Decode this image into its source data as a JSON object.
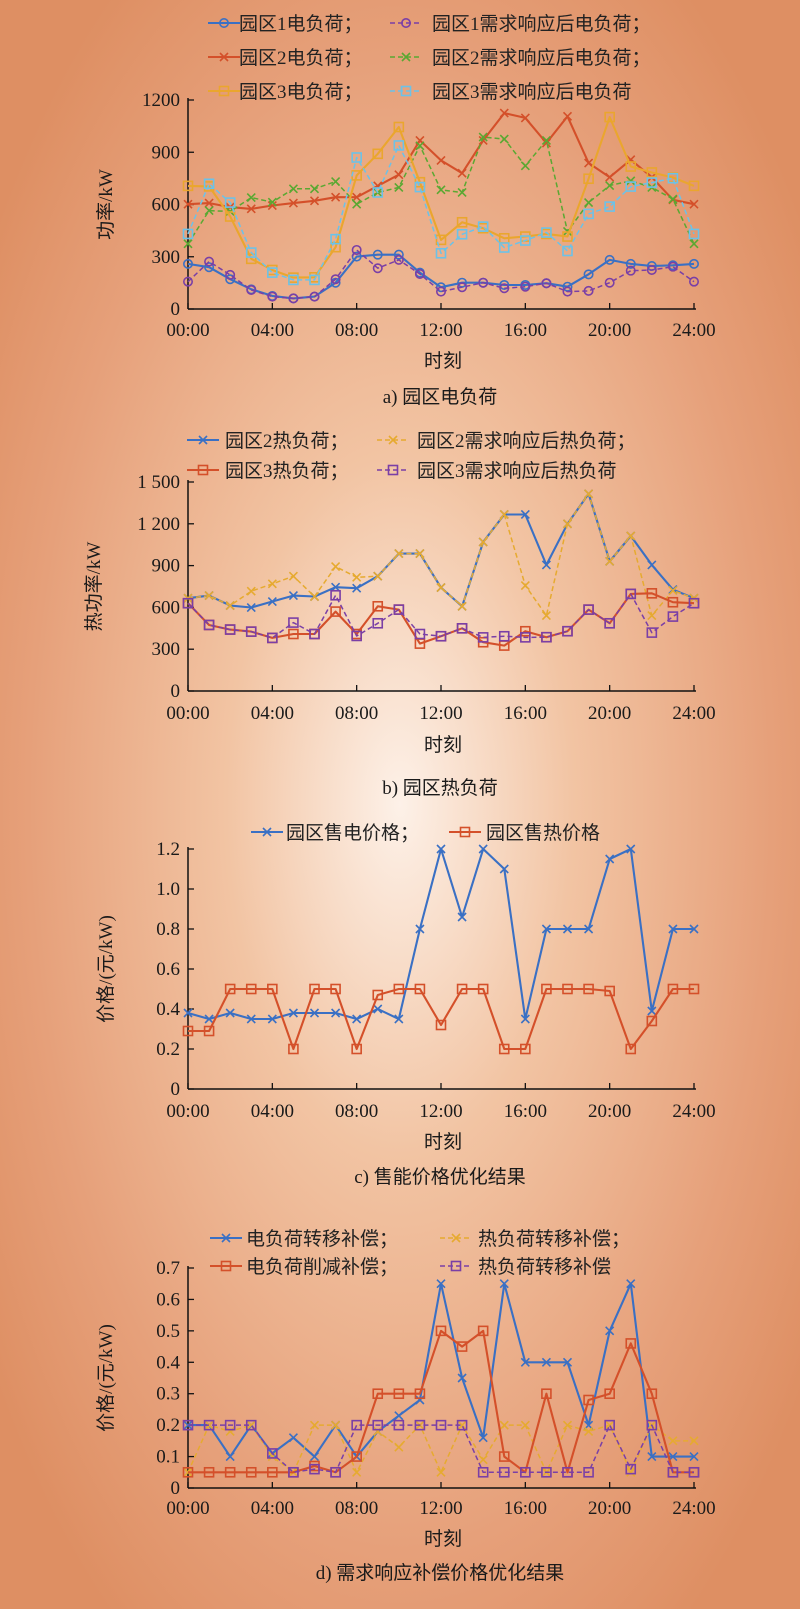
{
  "chart_data": [
    {
      "type": "line",
      "caption": "a) 园区电负荷",
      "xlabel": "时刻",
      "ylabel": "功率/kW",
      "xticks": [
        "00:00",
        "04:00",
        "08:00",
        "12:00",
        "16:00",
        "20:00",
        "24:00"
      ],
      "yticks": [
        "0",
        "300",
        "600",
        "900",
        "1200"
      ],
      "ylim": [
        0,
        1200
      ],
      "x": [
        0,
        1,
        2,
        3,
        4,
        5,
        6,
        7,
        8,
        9,
        10,
        11,
        12,
        13,
        14,
        15,
        16,
        17,
        18,
        19,
        20,
        21,
        22,
        23,
        24
      ],
      "series": [
        {
          "name": "园区1电负荷；",
          "color": "#3a70c4",
          "marker": "circle",
          "dashed": false,
          "values": [
            259,
            240,
            171,
            113,
            75,
            61,
            71,
            151,
            301,
            312,
            312,
            209,
            125,
            151,
            151,
            138,
            138,
            148,
            128,
            199,
            282,
            259,
            247,
            251,
            259
          ]
        },
        {
          "name": "园区1需求响应后电负荷；",
          "color": "#7a3fa6",
          "marker": "circle",
          "dashed": true,
          "values": [
            157,
            272,
            196,
            109,
            71,
            61,
            71,
            171,
            339,
            234,
            282,
            201,
            100,
            125,
            151,
            119,
            128,
            148,
            100,
            104,
            151,
            220,
            224,
            243,
            157
          ]
        },
        {
          "name": "园区2电负荷；",
          "color": "#d4502a",
          "marker": "x",
          "dashed": false,
          "values": [
            602,
            608,
            585,
            575,
            594,
            608,
            621,
            642,
            642,
            707,
            771,
            968,
            853,
            780,
            968,
            1125,
            1097,
            953,
            1106,
            838,
            757,
            857,
            757,
            627,
            602
          ]
        },
        {
          "name": "园区2需求响应后电负荷；",
          "color": "#5aa832",
          "marker": "x",
          "dashed": true,
          "values": [
            374,
            565,
            560,
            640,
            613,
            690,
            690,
            732,
            602,
            669,
            698,
            937,
            684,
            669,
            987,
            976,
            822,
            968,
            445,
            611,
            709,
            736,
            698,
            631,
            374
          ]
        },
        {
          "name": "园区3电负荷；",
          "color": "#eaa62e",
          "marker": "square",
          "dashed": false,
          "values": [
            707,
            704,
            531,
            288,
            224,
            180,
            182,
            355,
            767,
            891,
            1045,
            728,
            397,
            498,
            464,
            406,
            416,
            431,
            416,
            748,
            1102,
            818,
            784,
            755,
            707
          ]
        },
        {
          "name": "园区3需求响应后电负荷",
          "color": "#6cc2e8",
          "marker": "square",
          "dashed": true,
          "values": [
            431,
            719,
            611,
            324,
            209,
            167,
            167,
            401,
            870,
            669,
            939,
            700,
            320,
            429,
            473,
            353,
            393,
            439,
            333,
            546,
            588,
            703,
            726,
            751,
            431
          ]
        }
      ]
    },
    {
      "type": "line",
      "caption": "b) 园区热负荷",
      "xlabel": "时刻",
      "ylabel": "热功率/kW",
      "xticks": [
        "00:00",
        "04:00",
        "08:00",
        "12:00",
        "16:00",
        "20:00",
        "24:00"
      ],
      "yticks": [
        "0",
        "300",
        "600",
        "900",
        "1 200",
        "1 500"
      ],
      "ylim": [
        0,
        1500
      ],
      "x": [
        0,
        1,
        2,
        3,
        4,
        5,
        6,
        7,
        8,
        9,
        10,
        11,
        12,
        13,
        14,
        15,
        16,
        17,
        18,
        19,
        20,
        21,
        22,
        23,
        24
      ],
      "series": [
        {
          "name": "园区2热负荷；",
          "color": "#3a70c4",
          "marker": "x",
          "dashed": false,
          "values": [
            666,
            685,
            613,
            599,
            642,
            685,
            678,
            745,
            738,
            824,
            986,
            986,
            742,
            608,
            1070,
            1267,
            1267,
            905,
            1200,
            1415,
            931,
            1113,
            905,
            728,
            666
          ]
        },
        {
          "name": "园区2需求响应后热负荷；",
          "color": "#e6aa30",
          "marker": "x",
          "dashed": true,
          "values": [
            666,
            685,
            613,
            716,
            769,
            824,
            678,
            893,
            816,
            824,
            986,
            986,
            742,
            608,
            1070,
            1267,
            757,
            541,
            1200,
            1415,
            931,
            1113,
            541,
            721,
            666
          ]
        },
        {
          "name": "园区3热负荷；",
          "color": "#d4502a",
          "marker": "square",
          "dashed": false,
          "values": [
            630,
            474,
            441,
            426,
            381,
            409,
            409,
            570,
            409,
            608,
            584,
            340,
            393,
            450,
            350,
            326,
            429,
            386,
            429,
            584,
            486,
            697,
            701,
            637,
            630
          ]
        },
        {
          "name": "园区3需求响应后热负荷",
          "color": "#7a3fa6",
          "marker": "square",
          "dashed": true,
          "values": [
            630,
            474,
            441,
            426,
            381,
            491,
            409,
            687,
            395,
            486,
            584,
            409,
            393,
            450,
            385,
            393,
            385,
            386,
            429,
            584,
            486,
            697,
            419,
            534,
            630
          ]
        }
      ]
    },
    {
      "type": "line",
      "caption": "c) 售能价格优化结果",
      "xlabel": "时刻",
      "ylabel": "价格/(元/kW)",
      "xticks": [
        "00:00",
        "04:00",
        "08:00",
        "12:00",
        "16:00",
        "20:00",
        "24:00"
      ],
      "yticks": [
        "0",
        "0.2",
        "0.4",
        "0.6",
        "0.8",
        "1.0",
        "1.2"
      ],
      "ylim": [
        0,
        1.2
      ],
      "x": [
        0,
        1,
        2,
        3,
        4,
        5,
        6,
        7,
        8,
        9,
        10,
        11,
        12,
        13,
        14,
        15,
        16,
        17,
        18,
        19,
        20,
        21,
        22,
        23,
        24
      ],
      "series": [
        {
          "name": "园区售电价格；",
          "color": "#3a70c4",
          "marker": "x",
          "dashed": false,
          "values": [
            0.38,
            0.35,
            0.38,
            0.35,
            0.35,
            0.38,
            0.38,
            0.38,
            0.35,
            0.4,
            0.35,
            0.8,
            1.2,
            0.86,
            1.2,
            1.1,
            0.35,
            0.8,
            0.8,
            0.8,
            1.15,
            1.2,
            0.39,
            0.8,
            0.8
          ]
        },
        {
          "name": "园区售热价格",
          "color": "#d4502a",
          "marker": "square",
          "dashed": false,
          "values": [
            0.29,
            0.29,
            0.5,
            0.5,
            0.5,
            0.2,
            0.5,
            0.5,
            0.2,
            0.47,
            0.5,
            0.5,
            0.32,
            0.5,
            0.5,
            0.2,
            0.2,
            0.5,
            0.5,
            0.5,
            0.49,
            0.2,
            0.34,
            0.5,
            0.5
          ]
        }
      ]
    },
    {
      "type": "line",
      "caption": "d) 需求响应补偿价格优化结果",
      "xlabel": "时刻",
      "ylabel": "价格/(元/kW)",
      "xticks": [
        "00:00",
        "04:00",
        "08:00",
        "12:00",
        "16:00",
        "20:00",
        "24:00"
      ],
      "yticks": [
        "0",
        "0.1",
        "0.2",
        "0.3",
        "0.4",
        "0.5",
        "0.6",
        "0.7"
      ],
      "ylim": [
        0,
        0.7
      ],
      "x": [
        0,
        1,
        2,
        3,
        4,
        5,
        6,
        7,
        8,
        9,
        10,
        11,
        12,
        13,
        14,
        15,
        16,
        17,
        18,
        19,
        20,
        21,
        22,
        23,
        24
      ],
      "series": [
        {
          "name": "电负荷转移补偿；",
          "color": "#3a70c4",
          "marker": "x",
          "dashed": false,
          "values": [
            0.2,
            0.2,
            0.1,
            0.2,
            0.11,
            0.16,
            0.1,
            0.2,
            0.1,
            0.18,
            0.23,
            0.28,
            0.65,
            0.35,
            0.16,
            0.65,
            0.4,
            0.4,
            0.4,
            0.2,
            0.5,
            0.65,
            0.1,
            0.1,
            0.1
          ]
        },
        {
          "name": "热负荷转移补偿；",
          "color": "#e6aa30",
          "marker": "x",
          "dashed": true,
          "values": [
            0.05,
            0.2,
            0.18,
            0.2,
            0.1,
            0.05,
            0.2,
            0.2,
            0.05,
            0.18,
            0.13,
            0.2,
            0.05,
            0.2,
            0.09,
            0.2,
            0.2,
            0.05,
            0.2,
            0.18,
            0.2,
            0.05,
            0.2,
            0.15,
            0.15
          ]
        },
        {
          "name": "电负荷削减补偿；",
          "color": "#d4502a",
          "marker": "square",
          "dashed": false,
          "values": [
            0.05,
            0.05,
            0.05,
            0.05,
            0.05,
            0.05,
            0.07,
            0.05,
            0.1,
            0.3,
            0.3,
            0.3,
            0.5,
            0.45,
            0.5,
            0.1,
            0.05,
            0.3,
            0.05,
            0.28,
            0.3,
            0.46,
            0.3,
            0.05,
            0.05
          ]
        },
        {
          "name": "热负荷转移补偿",
          "color": "#7a3fa6",
          "marker": "square",
          "dashed": true,
          "values": [
            0.2,
            0.2,
            0.2,
            0.2,
            0.11,
            0.05,
            0.06,
            0.05,
            0.2,
            0.2,
            0.2,
            0.2,
            0.2,
            0.2,
            0.05,
            0.05,
            0.05,
            0.05,
            0.05,
            0.05,
            0.2,
            0.06,
            0.2,
            0.05,
            0.05
          ]
        }
      ]
    }
  ]
}
